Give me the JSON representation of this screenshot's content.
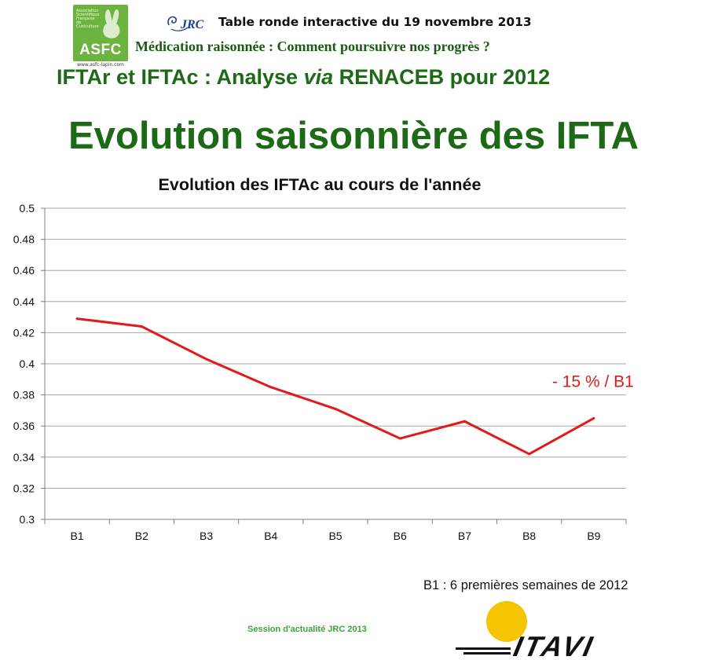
{
  "header": {
    "asfc_logo_text": "ASFC",
    "asfc_logo_small_text": "Association Scientifique Française de Cuniculture",
    "asfc_logo_url": "www.asfc-lapin.com",
    "jrc_logo_text": "JRC",
    "line1": "Table ronde interactive du 19 novembre 2013",
    "line2": "Médication raisonnée : Comment poursuivre nos progrès ?",
    "line3_before": "IFTAr et IFTAc : Analyse ",
    "line3_italic": "via",
    "line3_after": " RENACEB pour 2012"
  },
  "slide_title": "Evolution saisonnière des IFTA",
  "chart_data": {
    "type": "line",
    "title": "Evolution des IFTAc au cours de l'année",
    "categories": [
      "B1",
      "B2",
      "B3",
      "B4",
      "B5",
      "B6",
      "B7",
      "B8",
      "B9"
    ],
    "series": [
      {
        "values": [
          0.429,
          0.424,
          0.403,
          0.385,
          0.371,
          0.352,
          0.363,
          0.342,
          0.365
        ],
        "color": "#e31a1c"
      }
    ],
    "ylim": [
      0.3,
      0.5
    ],
    "yticks": [
      "0.3",
      "0.32",
      "0.34",
      "0.36",
      "0.38",
      "0.4",
      "0.42",
      "0.44",
      "0.46",
      "0.48",
      "0.5"
    ],
    "grid": true,
    "annotation": {
      "text": "- 15 % / B1",
      "color": "#e31a1c",
      "near": "B9"
    }
  },
  "footnote": "B1 : 6 premières semaines de 2012",
  "footer": {
    "session": "Session d'actualité JRC 2013",
    "itavi_logo_text": "ITAVI"
  },
  "colors": {
    "title_green": "#1d6a16",
    "subtitle_green": "#1a5c14",
    "session_green": "#3aa63a",
    "line_red": "#e31a1c",
    "logo_green": "#6db33f",
    "sun_yellow": "#f5c400"
  }
}
